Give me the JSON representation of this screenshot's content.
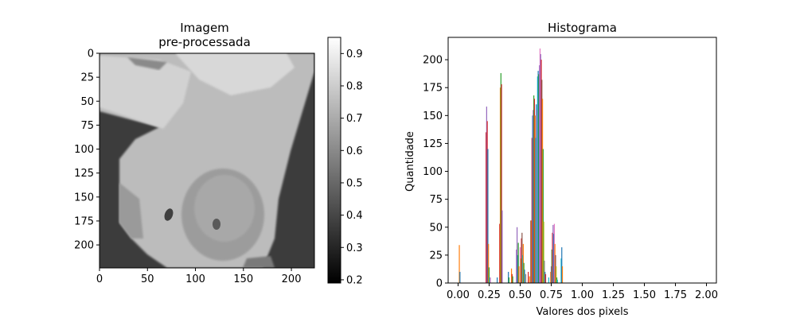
{
  "chart_data": [
    {
      "type": "heatmap",
      "title_line1": "Imagem",
      "title_line2": "pre-processada",
      "xlim": [
        0,
        224
      ],
      "ylim": [
        224,
        0
      ],
      "x_ticks": [
        0,
        50,
        100,
        150,
        200
      ],
      "y_ticks": [
        0,
        25,
        50,
        75,
        100,
        125,
        150,
        175,
        200
      ],
      "colormap": "gray",
      "colorbar": {
        "range": [
          0.19,
          0.95
        ],
        "ticks": [
          0.2,
          0.3,
          0.4,
          0.5,
          0.6,
          0.7,
          0.8,
          0.9
        ]
      }
    },
    {
      "type": "bar",
      "title": "Histograma",
      "xlabel": "Valores dos pixels",
      "ylabel": "Quantidade",
      "xlim": [
        -0.08,
        2.08
      ],
      "ylim": [
        0,
        220
      ],
      "x_ticks": [
        "0.00",
        "0.25",
        "0.50",
        "0.75",
        "1.00",
        "1.25",
        "1.50",
        "1.75",
        "2.00"
      ],
      "y_ticks": [
        0,
        25,
        50,
        75,
        100,
        125,
        150,
        175,
        200
      ],
      "palette": [
        "#1f77b4",
        "#ff7f0e",
        "#2ca02c",
        "#d62728",
        "#9467bd",
        "#8c564b",
        "#e377c2",
        "#7f7f7f",
        "#bcbd22",
        "#17becf"
      ],
      "bars": [
        {
          "x": 0.01,
          "h": 34,
          "c": 1
        },
        {
          "x": 0.015,
          "h": 10,
          "c": 0
        },
        {
          "x": 0.225,
          "h": 135,
          "c": 3
        },
        {
          "x": 0.23,
          "h": 158,
          "c": 4
        },
        {
          "x": 0.235,
          "h": 145,
          "c": 3
        },
        {
          "x": 0.24,
          "h": 120,
          "c": 0
        },
        {
          "x": 0.245,
          "h": 35,
          "c": 1
        },
        {
          "x": 0.25,
          "h": 14,
          "c": 2
        },
        {
          "x": 0.255,
          "h": 5,
          "c": 9
        },
        {
          "x": 0.26,
          "h": 5,
          "c": 6
        },
        {
          "x": 0.315,
          "h": 5,
          "c": 0
        },
        {
          "x": 0.335,
          "h": 53,
          "c": 3
        },
        {
          "x": 0.34,
          "h": 175,
          "c": 1
        },
        {
          "x": 0.345,
          "h": 188,
          "c": 2
        },
        {
          "x": 0.35,
          "h": 178,
          "c": 3
        },
        {
          "x": 0.355,
          "h": 65,
          "c": 4
        },
        {
          "x": 0.405,
          "h": 10,
          "c": 0
        },
        {
          "x": 0.41,
          "h": 5,
          "c": 2
        },
        {
          "x": 0.43,
          "h": 13,
          "c": 1
        },
        {
          "x": 0.435,
          "h": 8,
          "c": 3
        },
        {
          "x": 0.44,
          "h": 6,
          "c": 2
        },
        {
          "x": 0.47,
          "h": 30,
          "c": 4
        },
        {
          "x": 0.475,
          "h": 50,
          "c": 4
        },
        {
          "x": 0.48,
          "h": 25,
          "c": 0
        },
        {
          "x": 0.485,
          "h": 36,
          "c": 2
        },
        {
          "x": 0.49,
          "h": 15,
          "c": 1
        },
        {
          "x": 0.5,
          "h": 32,
          "c": 6
        },
        {
          "x": 0.505,
          "h": 22,
          "c": 8
        },
        {
          "x": 0.51,
          "h": 40,
          "c": 3
        },
        {
          "x": 0.515,
          "h": 45,
          "c": 5
        },
        {
          "x": 0.52,
          "h": 25,
          "c": 9
        },
        {
          "x": 0.525,
          "h": 35,
          "c": 1
        },
        {
          "x": 0.53,
          "h": 18,
          "c": 2
        },
        {
          "x": 0.535,
          "h": 12,
          "c": 0
        },
        {
          "x": 0.545,
          "h": 8,
          "c": 7
        },
        {
          "x": 0.565,
          "h": 10,
          "c": 3
        },
        {
          "x": 0.575,
          "h": 6,
          "c": 1
        },
        {
          "x": 0.585,
          "h": 56,
          "c": 5
        },
        {
          "x": 0.59,
          "h": 56,
          "c": 1
        },
        {
          "x": 0.595,
          "h": 130,
          "c": 3
        },
        {
          "x": 0.6,
          "h": 150,
          "c": 0
        },
        {
          "x": 0.605,
          "h": 155,
          "c": 4
        },
        {
          "x": 0.61,
          "h": 168,
          "c": 2
        },
        {
          "x": 0.615,
          "h": 165,
          "c": 3
        },
        {
          "x": 0.62,
          "h": 150,
          "c": 1
        },
        {
          "x": 0.625,
          "h": 130,
          "c": 9
        },
        {
          "x": 0.63,
          "h": 160,
          "c": 0
        },
        {
          "x": 0.635,
          "h": 155,
          "c": 6
        },
        {
          "x": 0.64,
          "h": 185,
          "c": 9
        },
        {
          "x": 0.645,
          "h": 190,
          "c": 0
        },
        {
          "x": 0.65,
          "h": 187,
          "c": 2
        },
        {
          "x": 0.655,
          "h": 195,
          "c": 4
        },
        {
          "x": 0.66,
          "h": 210,
          "c": 6
        },
        {
          "x": 0.665,
          "h": 205,
          "c": 4
        },
        {
          "x": 0.67,
          "h": 200,
          "c": 3
        },
        {
          "x": 0.675,
          "h": 182,
          "c": 5
        },
        {
          "x": 0.68,
          "h": 165,
          "c": 1
        },
        {
          "x": 0.685,
          "h": 120,
          "c": 2
        },
        {
          "x": 0.69,
          "h": 55,
          "c": 8
        },
        {
          "x": 0.695,
          "h": 20,
          "c": 7
        },
        {
          "x": 0.7,
          "h": 10,
          "c": 0
        },
        {
          "x": 0.705,
          "h": 8,
          "c": 3
        },
        {
          "x": 0.73,
          "h": 5,
          "c": 9
        },
        {
          "x": 0.745,
          "h": 10,
          "c": 1
        },
        {
          "x": 0.75,
          "h": 15,
          "c": 4
        },
        {
          "x": 0.755,
          "h": 30,
          "c": 2
        },
        {
          "x": 0.76,
          "h": 45,
          "c": 3
        },
        {
          "x": 0.765,
          "h": 52,
          "c": 4
        },
        {
          "x": 0.77,
          "h": 44,
          "c": 0
        },
        {
          "x": 0.775,
          "h": 53,
          "c": 6
        },
        {
          "x": 0.78,
          "h": 35,
          "c": 1
        },
        {
          "x": 0.785,
          "h": 25,
          "c": 5
        },
        {
          "x": 0.79,
          "h": 15,
          "c": 8
        },
        {
          "x": 0.795,
          "h": 5,
          "c": 2
        },
        {
          "x": 0.8,
          "h": 3,
          "c": 9
        },
        {
          "x": 0.83,
          "h": 22,
          "c": 9
        },
        {
          "x": 0.835,
          "h": 32,
          "c": 0
        },
        {
          "x": 0.84,
          "h": 15,
          "c": 1
        }
      ]
    }
  ]
}
